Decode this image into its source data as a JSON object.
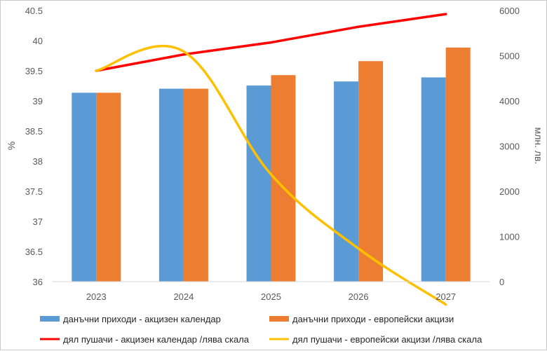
{
  "chart_data": {
    "type": "bar",
    "categories": [
      "2023",
      "2024",
      "2025",
      "2026",
      "2027"
    ],
    "left_axis": {
      "label": "%",
      "range": [
        36,
        40.5
      ],
      "ticks": [
        "36",
        "36.5",
        "37",
        "37.5",
        "38",
        "38.5",
        "39",
        "39.5",
        "40",
        "40.5"
      ]
    },
    "right_axis": {
      "label": "млн. лв.",
      "range": [
        0,
        6000
      ],
      "ticks": [
        "0",
        "1000",
        "2000",
        "3000",
        "4000",
        "5000",
        "6000"
      ]
    },
    "series": [
      {
        "name": "данъчни приходи - акцизен календар",
        "kind": "bar",
        "axis": "right",
        "color": "#5B9BD5",
        "values": [
          4180,
          4270,
          4340,
          4430,
          4520
        ]
      },
      {
        "name": "данъчни приходи - европейски акцизи",
        "kind": "bar",
        "axis": "right",
        "color": "#ED7D31",
        "values": [
          4180,
          4270,
          4570,
          4880,
          5180
        ]
      },
      {
        "name": "дял пушачи - акцизен календар /лява скала",
        "kind": "line",
        "axis": "left",
        "color": "#FF0000",
        "values": [
          39.5,
          39.77,
          39.97,
          40.23,
          40.44
        ]
      },
      {
        "name": "дял пушачи - европейски акцизи /лява скала",
        "kind": "line",
        "axis": "left",
        "color": "#FFC000",
        "values": [
          39.5,
          39.82,
          37.78,
          36.55,
          35.62
        ]
      }
    ],
    "grid": false,
    "legend_position": "bottom"
  }
}
